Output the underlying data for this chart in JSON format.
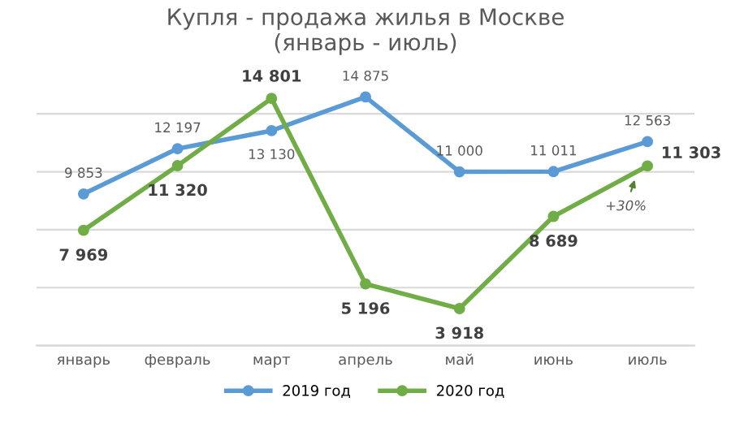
{
  "chart_data": {
    "type": "line",
    "title": "Купля - продажа жилья в Москве\n(январь - июль)",
    "categories": [
      "январь",
      "февраль",
      "март",
      "апрель",
      "май",
      "июнь",
      "июль"
    ],
    "series": [
      {
        "name": "2019 год",
        "color": "#5b9bd5",
        "values": [
          9853,
          12197,
          13130,
          14875,
          11000,
          11011,
          12563
        ]
      },
      {
        "name": "2020 год",
        "color": "#70ad47",
        "values": [
          7969,
          11320,
          14801,
          5196,
          3918,
          8689,
          11303
        ]
      }
    ],
    "yticks": [
      {
        "value": 2000,
        "label": null
      },
      {
        "value": 5000,
        "label": null
      },
      {
        "value": 8000,
        "label": null
      },
      {
        "value": 11000,
        "label": null
      },
      {
        "value": 14000,
        "label": null
      }
    ],
    "tick_labels": "x",
    "grid": "y",
    "legend": "bottom",
    "marker": "circle",
    "line_style": "solid",
    "data_labels": true,
    "annotations": [
      {
        "text": "+30%",
        "x": "июль",
        "y": 11303
      }
    ]
  }
}
